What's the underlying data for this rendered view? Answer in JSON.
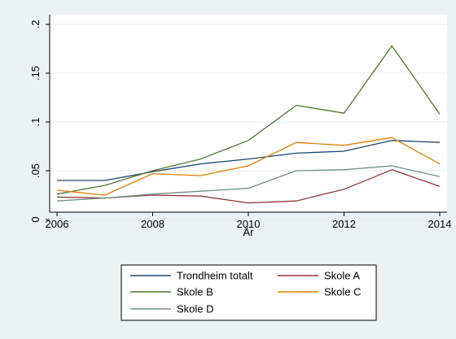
{
  "chart_data": {
    "type": "line",
    "title": "",
    "xlabel": "År",
    "ylabel": "",
    "xlim": [
      2006,
      2014
    ],
    "ylim": [
      0,
      0.2
    ],
    "x_ticks": [
      {
        "value": 2006,
        "label": "2006"
      },
      {
        "value": 2008,
        "label": "2008"
      },
      {
        "value": 2010,
        "label": "2010"
      },
      {
        "value": 2012,
        "label": "2012"
      },
      {
        "value": 2014,
        "label": "2014"
      }
    ],
    "y_ticks": [
      {
        "value": 0,
        "label": "0"
      },
      {
        "value": 0.05,
        "label": ".05"
      },
      {
        "value": 0.1,
        "label": ".1"
      },
      {
        "value": 0.15,
        "label": ".15"
      },
      {
        "value": 0.2,
        "label": ".2"
      }
    ],
    "grid": true,
    "legend_position": "bottom",
    "x": [
      2006,
      2007,
      2008,
      2009,
      2010,
      2011,
      2012,
      2013,
      2014
    ],
    "series": [
      {
        "name": "Trondheim totalt",
        "color": "#1a476f",
        "values": [
          0.04,
          0.04,
          0.049,
          0.057,
          0.062,
          0.068,
          0.07,
          0.081,
          0.079
        ]
      },
      {
        "name": "Skole A",
        "color": "#90353b",
        "values": [
          0.023,
          0.022,
          0.025,
          0.024,
          0.017,
          0.019,
          0.031,
          0.051,
          0.034
        ]
      },
      {
        "name": "Skole B",
        "color": "#55752f",
        "values": [
          0.026,
          0.035,
          0.05,
          0.062,
          0.081,
          0.117,
          0.109,
          0.178,
          0.108
        ]
      },
      {
        "name": "Skole C",
        "color": "#e37e00",
        "values": [
          0.03,
          0.025,
          0.047,
          0.045,
          0.055,
          0.079,
          0.076,
          0.084,
          0.057
        ]
      },
      {
        "name": "Skole D",
        "color": "#6e8e84",
        "values": [
          0.019,
          0.022,
          0.026,
          0.029,
          0.032,
          0.05,
          0.051,
          0.055,
          0.044
        ]
      }
    ]
  }
}
